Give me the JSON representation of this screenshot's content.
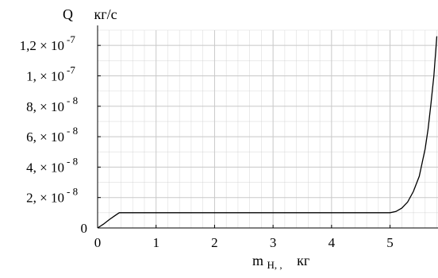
{
  "chart_data": {
    "type": "line",
    "ylabel": {
      "symbol": "Q",
      "unit": "кг/с"
    },
    "xlabel": {
      "symbol": "m",
      "subscript": "H, ,",
      "unit": "кг"
    },
    "xlim": [
      0,
      5.82
    ],
    "ylim": [
      0,
      1.3e-07
    ],
    "grid": true,
    "x_ticks": [
      {
        "value": 0,
        "label": "0"
      },
      {
        "value": 1,
        "label": "1"
      },
      {
        "value": 2,
        "label": "2"
      },
      {
        "value": 3,
        "label": "3"
      },
      {
        "value": 4,
        "label": "4"
      },
      {
        "value": 5,
        "label": "5"
      }
    ],
    "y_ticks": [
      {
        "value": 0,
        "mantissa": "0",
        "exponent": ""
      },
      {
        "value": 2e-08,
        "mantissa": "2, × 10",
        "exponent": "- 8"
      },
      {
        "value": 4e-08,
        "mantissa": "4, × 10",
        "exponent": "- 8"
      },
      {
        "value": 6e-08,
        "mantissa": "6, × 10",
        "exponent": "- 8"
      },
      {
        "value": 8e-08,
        "mantissa": "8, × 10",
        "exponent": "- 8"
      },
      {
        "value": 1e-07,
        "mantissa": "1, × 10",
        "exponent": "-7"
      },
      {
        "value": 1.2e-07,
        "mantissa": "1,2 × 10",
        "exponent": "-7"
      }
    ],
    "series": [
      {
        "x": [
          0,
          0.1,
          0.2,
          0.3,
          0.37,
          1,
          2,
          3,
          4,
          5.0,
          5.1,
          5.2,
          5.3,
          5.4,
          5.5,
          5.6,
          5.65,
          5.7,
          5.75,
          5.8
        ],
        "y": [
          0,
          2.5e-09,
          5.5e-09,
          8.2e-09,
          1e-08,
          1e-08,
          1e-08,
          1e-08,
          1e-08,
          1e-08,
          1.08e-08,
          1.3e-08,
          1.7e-08,
          2.4e-08,
          3.4e-08,
          5.2e-08,
          6.5e-08,
          8.2e-08,
          1e-07,
          1.26e-07
        ]
      }
    ],
    "colors": {
      "line": "#000000",
      "grid": "#c8c8c8",
      "axis": "#000000"
    }
  }
}
